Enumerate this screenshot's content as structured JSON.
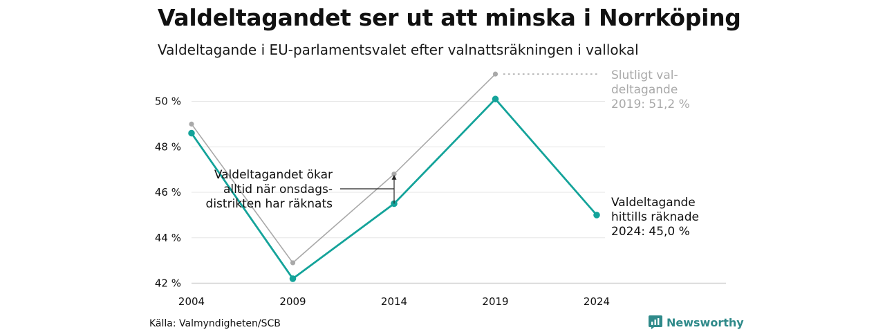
{
  "chart_data": {
    "type": "line",
    "title": "Valdeltagandet ser ut att minska i Norrköping",
    "subtitle": "Valdeltagande i EU-parlamentsvalet efter valnattsräkningen i vallokal",
    "categories": [
      "2004",
      "2009",
      "2014",
      "2019",
      "2024"
    ],
    "ylim": [
      42,
      51.4
    ],
    "y_ticks": [
      42,
      44,
      46,
      48,
      50
    ],
    "y_tick_labels": [
      "42 %",
      "44 %",
      "46 %",
      "48 %",
      "50 %"
    ],
    "grid": true,
    "series": [
      {
        "key": "final",
        "values": [
          49.0,
          42.9,
          46.8,
          51.2,
          null
        ],
        "color": "#a9a9a9"
      },
      {
        "key": "election_night",
        "values": [
          48.6,
          42.2,
          45.5,
          50.1,
          45.0
        ],
        "color": "#14a39a"
      }
    ],
    "annotations": {
      "final_label": [
        "Slutligt val-",
        "deltagande",
        "2019: 51,2 %"
      ],
      "current_label": [
        "Valdeltagande",
        "hittills räknade",
        "2024: 45,0 %"
      ],
      "wednesday_note": [
        "Valdeltagandet ökar",
        "alltid när onsdags-",
        "distrikten har räknats"
      ]
    }
  },
  "footer": {
    "source": "Källa: Valmyndigheten/SCB",
    "brand": "Newsworthy",
    "brand_icon": "bar-chart-logo-icon"
  }
}
